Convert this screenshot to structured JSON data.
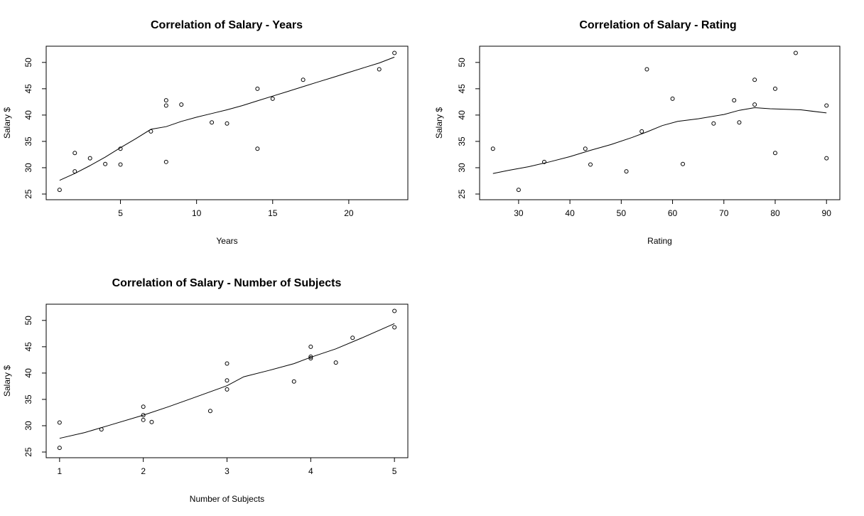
{
  "figure": {
    "background": "#ffffff",
    "point_color": "#000000",
    "line_color": "#000000"
  },
  "chart_data": [
    {
      "type": "scatter",
      "title": "Correlation of Salary - Years",
      "xlabel": "Years",
      "ylabel": "Salary $",
      "xlim": [
        1,
        23
      ],
      "ylim": [
        25,
        52
      ],
      "xticks": [
        5,
        10,
        15,
        20
      ],
      "yticks": [
        25,
        30,
        35,
        40,
        45,
        50
      ],
      "grid": false,
      "points": [
        [
          1,
          25.8
        ],
        [
          2,
          29.3
        ],
        [
          2,
          32.8
        ],
        [
          3,
          31.8
        ],
        [
          4,
          30.7
        ],
        [
          5,
          30.6
        ],
        [
          5,
          33.6
        ],
        [
          7,
          36.9
        ],
        [
          8,
          31.1
        ],
        [
          8,
          41.8
        ],
        [
          8,
          42.8
        ],
        [
          9,
          42.0
        ],
        [
          11,
          38.6
        ],
        [
          12,
          38.4
        ],
        [
          14,
          33.6
        ],
        [
          14,
          45.0
        ],
        [
          15,
          43.1
        ],
        [
          17,
          46.7
        ],
        [
          22,
          48.7
        ],
        [
          23,
          51.8
        ]
      ],
      "smooth": [
        [
          1,
          27.6
        ],
        [
          2,
          28.9
        ],
        [
          3,
          30.4
        ],
        [
          4,
          32.0
        ],
        [
          5,
          33.8
        ],
        [
          6,
          35.5
        ],
        [
          7,
          37.3
        ],
        [
          8,
          37.8
        ],
        [
          9,
          38.8
        ],
        [
          10,
          39.6
        ],
        [
          11,
          40.3
        ],
        [
          12,
          41.0
        ],
        [
          13,
          41.8
        ],
        [
          14,
          42.7
        ],
        [
          15,
          43.6
        ],
        [
          16,
          44.5
        ],
        [
          17,
          45.4
        ],
        [
          18,
          46.3
        ],
        [
          19,
          47.2
        ],
        [
          20,
          48.1
        ],
        [
          21,
          49.0
        ],
        [
          22,
          49.9
        ],
        [
          23,
          51.0
        ]
      ]
    },
    {
      "type": "scatter",
      "title": "Correlation of Salary - Rating",
      "xlabel": "Rating",
      "ylabel": "Salary $",
      "xlim": [
        25,
        90
      ],
      "ylim": [
        25,
        52
      ],
      "xticks": [
        30,
        40,
        50,
        60,
        70,
        80,
        90
      ],
      "yticks": [
        25,
        30,
        35,
        40,
        45,
        50
      ],
      "grid": false,
      "points": [
        [
          25,
          33.6
        ],
        [
          30,
          25.8
        ],
        [
          35,
          31.1
        ],
        [
          43,
          33.6
        ],
        [
          44,
          30.6
        ],
        [
          51,
          29.3
        ],
        [
          54,
          36.9
        ],
        [
          55,
          48.7
        ],
        [
          60,
          43.1
        ],
        [
          62,
          30.7
        ],
        [
          68,
          38.4
        ],
        [
          72,
          42.8
        ],
        [
          73,
          38.6
        ],
        [
          76,
          46.7
        ],
        [
          76,
          42.0
        ],
        [
          80,
          45.0
        ],
        [
          80,
          32.8
        ],
        [
          84,
          51.8
        ],
        [
          90,
          41.8
        ],
        [
          90,
          31.8
        ]
      ],
      "smooth": [
        [
          25,
          28.9
        ],
        [
          28,
          29.5
        ],
        [
          32,
          30.2
        ],
        [
          36,
          31.1
        ],
        [
          40,
          32.1
        ],
        [
          44,
          33.3
        ],
        [
          48,
          34.4
        ],
        [
          52,
          35.7
        ],
        [
          55,
          36.8
        ],
        [
          58,
          38.0
        ],
        [
          61,
          38.8
        ],
        [
          65,
          39.3
        ],
        [
          70,
          40.1
        ],
        [
          73,
          40.9
        ],
        [
          76,
          41.4
        ],
        [
          79,
          41.2
        ],
        [
          85,
          41.0
        ],
        [
          90,
          40.4
        ]
      ]
    },
    {
      "type": "scatter",
      "title": "Correlation of Salary - Number of Subjects",
      "xlabel": "Number of Subjects",
      "ylabel": "Salary $",
      "xlim": [
        1,
        5
      ],
      "ylim": [
        25,
        52
      ],
      "xticks": [
        1,
        2,
        3,
        4,
        5
      ],
      "yticks": [
        25,
        30,
        35,
        40,
        45,
        50
      ],
      "grid": false,
      "points": [
        [
          1,
          30.6
        ],
        [
          1,
          25.8
        ],
        [
          1.5,
          29.3
        ],
        [
          2,
          33.6
        ],
        [
          2,
          32.0
        ],
        [
          2,
          31.1
        ],
        [
          2.1,
          30.7
        ],
        [
          2.8,
          32.8
        ],
        [
          3,
          41.8
        ],
        [
          3,
          38.6
        ],
        [
          3,
          36.9
        ],
        [
          3.8,
          38.4
        ],
        [
          4,
          45.0
        ],
        [
          4,
          43.1
        ],
        [
          4,
          42.8
        ],
        [
          4.3,
          42.0
        ],
        [
          4.5,
          46.7
        ],
        [
          5,
          51.8
        ],
        [
          5,
          48.7
        ]
      ],
      "smooth": [
        [
          1,
          27.6
        ],
        [
          1.3,
          28.7
        ],
        [
          1.6,
          30.1
        ],
        [
          2,
          32.0
        ],
        [
          2.3,
          33.6
        ],
        [
          2.6,
          35.3
        ],
        [
          3,
          37.6
        ],
        [
          3.2,
          39.3
        ],
        [
          3.5,
          40.5
        ],
        [
          3.8,
          41.8
        ],
        [
          4,
          43.0
        ],
        [
          4.3,
          44.6
        ],
        [
          4.6,
          46.6
        ],
        [
          5,
          49.4
        ]
      ]
    }
  ]
}
